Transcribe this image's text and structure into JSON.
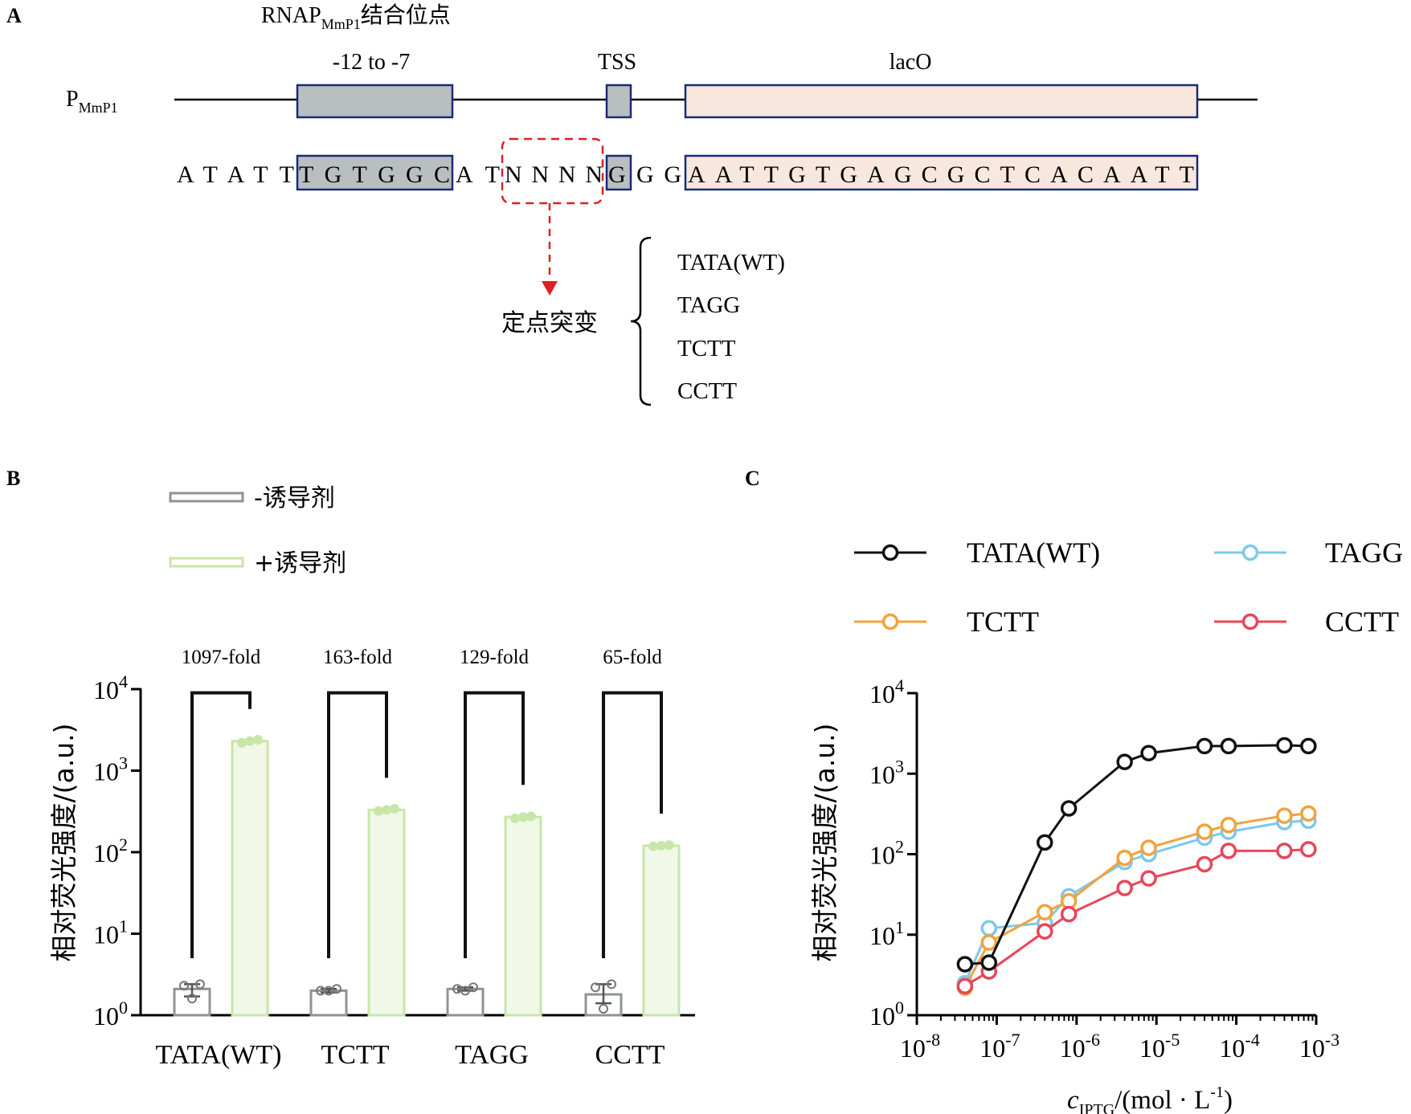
{
  "panel_a": {
    "label": "A",
    "binding_site_main": "RNAP",
    "binding_site_sub": "MmP1",
    "binding_site_suffix": "结合位点",
    "promoter_main": "P",
    "promoter_sub": "MmP1",
    "box_labels": [
      "-12 to -7",
      "TSS",
      "lacO"
    ],
    "sequence": {
      "prefix": "ATATT",
      "box1": "TGTGGC",
      "mid": "AT",
      "variable": "NNNN",
      "tss": "G",
      "spacer": "GG",
      "laco": "AATTGTGAGCGCTCACAATT"
    },
    "mutation_label": "定点突变",
    "variants": [
      "TATA(WT)",
      "TAGG",
      "TCTT",
      "CCTT"
    ]
  },
  "panel_b": {
    "label": "B",
    "legend": [
      {
        "name": "-诱导剂",
        "color": "#8c9494"
      },
      {
        "name": "+诱导剂",
        "color": "#c8e6a8"
      }
    ],
    "ylabel": "相对荧光强度/(a.u.)",
    "y_ticks": [
      {
        "base": "10",
        "exp": "0",
        "value": 1
      },
      {
        "base": "10",
        "exp": "1",
        "value": 10
      },
      {
        "base": "10",
        "exp": "2",
        "value": 100
      },
      {
        "base": "10",
        "exp": "3",
        "value": 1000
      },
      {
        "base": "10",
        "exp": "4",
        "value": 10000
      }
    ]
  },
  "panel_c": {
    "label": "C",
    "ylabel": "相对荧光强度/(a.u.)",
    "xlabel_var": "c",
    "xlabel_sub": "IPTG",
    "xlabel_unit": "/(mol · L",
    "xlabel_exp": "-1",
    "xlabel_close": ")",
    "x_ticks": [
      {
        "base": "10",
        "exp": "-8",
        "value": 1e-08
      },
      {
        "base": "10",
        "exp": "-7",
        "value": 1e-07
      },
      {
        "base": "10",
        "exp": "-6",
        "value": 1e-06
      },
      {
        "base": "10",
        "exp": "-5",
        "value": 1e-05
      },
      {
        "base": "10",
        "exp": "-4",
        "value": 0.0001
      },
      {
        "base": "10",
        "exp": "-3",
        "value": 0.001
      }
    ],
    "y_ticks": [
      {
        "base": "10",
        "exp": "0",
        "value": 1
      },
      {
        "base": "10",
        "exp": "1",
        "value": 10
      },
      {
        "base": "10",
        "exp": "2",
        "value": 100
      },
      {
        "base": "10",
        "exp": "3",
        "value": 1000
      },
      {
        "base": "10",
        "exp": "4",
        "value": 10000
      }
    ]
  },
  "chart_data": [
    {
      "type": "bar",
      "panel": "B",
      "yscale": "log",
      "ylim": [
        1,
        10000
      ],
      "ylabel": "相对荧光强度/(a.u.)",
      "categories": [
        "TATA(WT)",
        "TCTT",
        "TAGG",
        "CCTT"
      ],
      "series": [
        {
          "name": "-诱导剂",
          "color": "#8c9494",
          "values": [
            2.1,
            2.0,
            2.1,
            1.8
          ],
          "replicates": [
            [
              2.3,
              1.6,
              2.4
            ],
            [
              2.0,
              2.0,
              2.1
            ],
            [
              2.1,
              2.0,
              2.2
            ],
            [
              2.2,
              1.2,
              2.4
            ]
          ],
          "error": [
            [
              1.7,
              2.4
            ],
            [
              1.9,
              2.1
            ],
            [
              2.0,
              2.2
            ],
            [
              1.4,
              2.4
            ]
          ]
        },
        {
          "name": "+诱导剂",
          "color": "#c8e6a8",
          "values": [
            2300,
            330,
            270,
            120
          ],
          "replicates": [
            [
              2200,
              2300,
              2400
            ],
            [
              320,
              330,
              340
            ],
            [
              260,
              270,
              275
            ],
            [
              118,
              120,
              122
            ]
          ]
        }
      ],
      "annotations": [
        "1097-fold",
        "163-fold",
        "129-fold",
        "65-fold"
      ],
      "grid": false,
      "legend": "top-left"
    },
    {
      "type": "line",
      "panel": "C",
      "xscale": "log",
      "yscale": "log",
      "xlim": [
        1e-08,
        0.001
      ],
      "ylim": [
        1,
        10000
      ],
      "xlabel": "cIPTG/(mol · L-1)",
      "ylabel": "相对荧光强度/(a.u.)",
      "x": [
        4e-08,
        8e-08,
        4e-07,
        8e-07,
        4e-06,
        8e-06,
        4e-05,
        8e-05,
        0.0004,
        0.0008
      ],
      "series": [
        {
          "name": "TATA(WT)",
          "color": "#111111",
          "values": [
            4.3,
            4.5,
            140,
            370,
            1400,
            1800,
            2200,
            2200,
            2250,
            2200
          ]
        },
        {
          "name": "TAGG",
          "color": "#7ec8ea",
          "values": [
            2.5,
            12,
            14,
            30,
            80,
            100,
            160,
            190,
            250,
            260
          ]
        },
        {
          "name": "TCTT",
          "color": "#f2a23b",
          "values": [
            2.2,
            8,
            19,
            26,
            90,
            120,
            190,
            230,
            300,
            320
          ]
        },
        {
          "name": "CCTT",
          "color": "#e8465a",
          "values": [
            2.3,
            3.5,
            11,
            18,
            38,
            50,
            75,
            110,
            110,
            115
          ]
        }
      ],
      "grid": false,
      "legend": "top"
    }
  ]
}
